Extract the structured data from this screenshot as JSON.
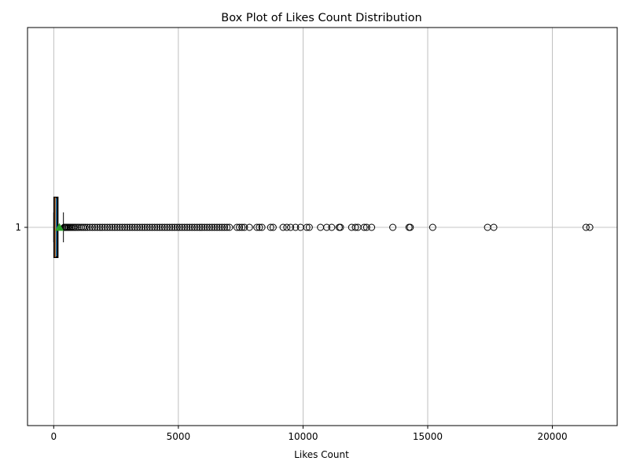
{
  "chart_data": {
    "type": "boxplot",
    "orientation": "horizontal",
    "title": "Box Plot of Likes Count Distribution",
    "xlabel": "Likes Count",
    "ylabel": "",
    "xlim": [
      -1050,
      22600
    ],
    "xticks": [
      0,
      5000,
      10000,
      15000,
      20000
    ],
    "xtick_labels": [
      "0",
      "5000",
      "10000",
      "15000",
      "20000"
    ],
    "yticks": [
      "1"
    ],
    "grid": true,
    "colors": {
      "box_fill": "#1f77b4",
      "box_edge": "#000000",
      "median": "#ff7f0e",
      "mean_marker": "#2ca02c",
      "grid": "#b0b0b0",
      "outlier_edge": "#000000"
    },
    "series": [
      {
        "label": "1",
        "whisker_low": 0,
        "q1": 20,
        "median": 60,
        "q3": 160,
        "whisker_high": 390,
        "mean": 230,
        "outliers": [
          420,
          450,
          480,
          520,
          560,
          600,
          650,
          700,
          760,
          820,
          880,
          950,
          1020,
          1100,
          1180,
          1260,
          1350,
          1450,
          1550,
          1650,
          1750,
          1850,
          1950,
          2050,
          2150,
          2250,
          2350,
          2450,
          2550,
          2650,
          2750,
          2850,
          2950,
          3050,
          3150,
          3250,
          3350,
          3450,
          3550,
          3650,
          3750,
          3850,
          3950,
          4050,
          4150,
          4250,
          4350,
          4450,
          4550,
          4650,
          4750,
          4850,
          4950,
          5050,
          5150,
          5250,
          5350,
          5450,
          5550,
          5650,
          5750,
          5850,
          5950,
          6050,
          6150,
          6250,
          6350,
          6450,
          6550,
          6650,
          6750,
          6850,
          6950,
          7050,
          7350,
          7450,
          7550,
          7650,
          7850,
          8150,
          8250,
          8350,
          8700,
          8800,
          9200,
          9350,
          9500,
          9700,
          9900,
          10150,
          10250,
          10700,
          10950,
          11150,
          11450,
          11500,
          11950,
          12100,
          12200,
          12450,
          12550,
          12750,
          13600,
          14250,
          14300,
          15200,
          17400,
          17650,
          21350,
          21500
        ]
      }
    ]
  }
}
